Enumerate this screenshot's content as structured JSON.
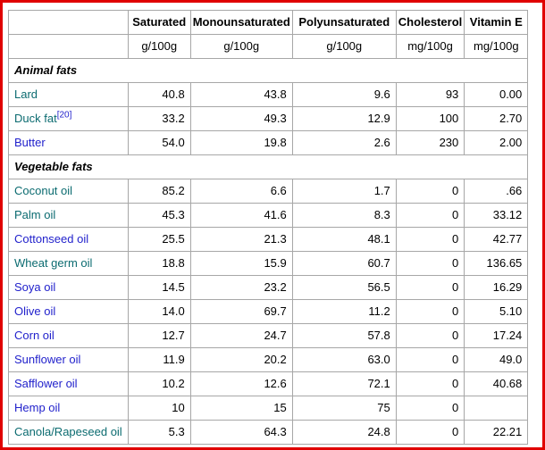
{
  "frame": {
    "border_color": "#e00000"
  },
  "colors": {
    "link": "#2222cc",
    "visited_link": "#0b6b70",
    "table_border": "#a7a7a7",
    "text": "#000000",
    "frame_red": "#e00000"
  },
  "chart_data": {
    "type": "table",
    "columns": [
      "",
      "Saturated",
      "Monounsaturated",
      "Polyunsaturated",
      "Cholesterol",
      "Vitamin E"
    ],
    "units": [
      "",
      "g/100g",
      "g/100g",
      "g/100g",
      "mg/100g",
      "mg/100g"
    ],
    "sections": [
      {
        "title": "Animal fats",
        "rows": [
          {
            "name": "Lard",
            "ref": "",
            "visited": true,
            "values": [
              "40.8",
              "43.8",
              "9.6",
              "93",
              "0.00"
            ]
          },
          {
            "name": "Duck fat",
            "ref": "[20]",
            "visited": true,
            "values": [
              "33.2",
              "49.3",
              "12.9",
              "100",
              "2.70"
            ]
          },
          {
            "name": "Butter",
            "ref": "",
            "visited": false,
            "values": [
              "54.0",
              "19.8",
              "2.6",
              "230",
              "2.00"
            ]
          }
        ]
      },
      {
        "title": "Vegetable fats",
        "rows": [
          {
            "name": "Coconut oil",
            "ref": "",
            "visited": true,
            "values": [
              "85.2",
              "6.6",
              "1.7",
              "0",
              ".66"
            ]
          },
          {
            "name": "Palm oil",
            "ref": "",
            "visited": true,
            "values": [
              "45.3",
              "41.6",
              "8.3",
              "0",
              "33.12"
            ]
          },
          {
            "name": "Cottonseed oil",
            "ref": "",
            "visited": false,
            "values": [
              "25.5",
              "21.3",
              "48.1",
              "0",
              "42.77"
            ]
          },
          {
            "name": "Wheat germ oil",
            "ref": "",
            "visited": true,
            "values": [
              "18.8",
              "15.9",
              "60.7",
              "0",
              "136.65"
            ]
          },
          {
            "name": "Soya oil",
            "ref": "",
            "visited": false,
            "values": [
              "14.5",
              "23.2",
              "56.5",
              "0",
              "16.29"
            ]
          },
          {
            "name": "Olive oil",
            "ref": "",
            "visited": false,
            "values": [
              "14.0",
              "69.7",
              "11.2",
              "0",
              "5.10"
            ]
          },
          {
            "name": "Corn oil",
            "ref": "",
            "visited": false,
            "values": [
              "12.7",
              "24.7",
              "57.8",
              "0",
              "17.24"
            ]
          },
          {
            "name": "Sunflower oil",
            "ref": "",
            "visited": false,
            "values": [
              "11.9",
              "20.2",
              "63.0",
              "0",
              "49.0"
            ]
          },
          {
            "name": "Safflower oil",
            "ref": "",
            "visited": false,
            "values": [
              "10.2",
              "12.6",
              "72.1",
              "0",
              "40.68"
            ]
          },
          {
            "name": "Hemp oil",
            "ref": "",
            "visited": false,
            "values": [
              "10",
              "15",
              "75",
              "0",
              ""
            ]
          },
          {
            "name": "Canola/Rapeseed oil",
            "ref": "",
            "visited": true,
            "values": [
              "5.3",
              "64.3",
              "24.8",
              "0",
              "22.21"
            ]
          }
        ]
      }
    ]
  }
}
